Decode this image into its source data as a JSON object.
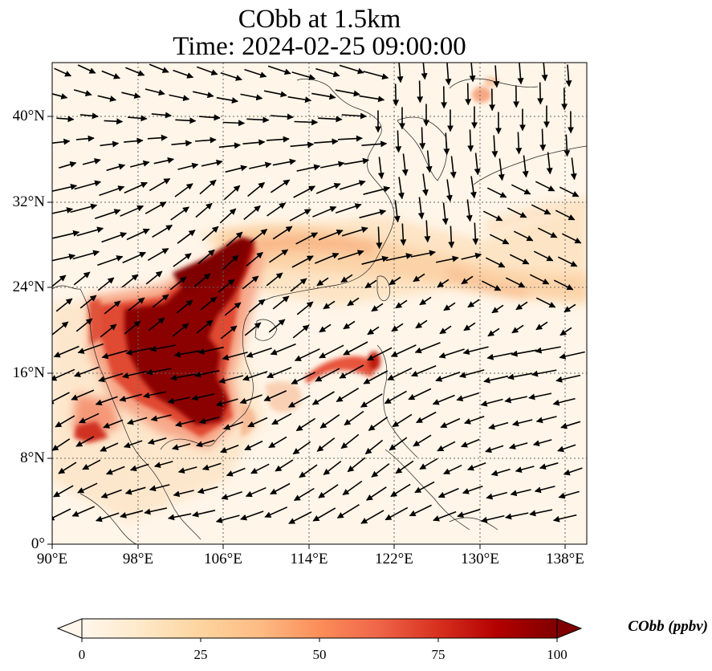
{
  "title_line1": "CObb at 1.5km",
  "title_line2": "Time: 2024-02-25 09:00:00",
  "variable": "CObb",
  "units": "ppbv",
  "colorbar": {
    "label": "CObb (ppbv)",
    "min": 0,
    "max": 100,
    "ticks": [
      "0",
      "25",
      "50",
      "75",
      "100"
    ],
    "colormap": "OrRd",
    "colors": [
      "#fff7ec",
      "#fee8c8",
      "#fdd49e",
      "#fdbb84",
      "#fc8d59",
      "#ef6548",
      "#d7301f",
      "#b30000",
      "#7f0000"
    ],
    "extend": "both"
  },
  "map": {
    "lon_range": [
      90,
      140
    ],
    "lat_range": [
      0,
      45
    ],
    "lon_ticks": [
      "90°E",
      "98°E",
      "106°E",
      "114°E",
      "122°E",
      "130°E",
      "138°E"
    ],
    "lat_ticks": [
      "0°",
      "8°N",
      "16°N",
      "24°N",
      "32°N",
      "40°N"
    ],
    "gridlines": "dotted",
    "vector_field": "wind vectors (black arrows)",
    "concentration_regions": [
      {
        "name": "Indochina / southern China core",
        "lon": [
          98,
          110
        ],
        "lat": [
          12,
          28
        ],
        "level": "100+"
      },
      {
        "name": "Northern Philippines plume",
        "lon": [
          117,
          121
        ],
        "lat": [
          16,
          18
        ],
        "level": "75-100"
      },
      {
        "name": "East China outflow band",
        "lon": [
          110,
          140
        ],
        "lat": [
          23,
          32
        ],
        "level": "15-35"
      },
      {
        "name": "Bay of Bengal streak",
        "lon": [
          92,
          97
        ],
        "lat": [
          9,
          11
        ],
        "level": "50-75"
      },
      {
        "name": "Northeast China",
        "lon": [
          128,
          131
        ],
        "lat": [
          42,
          44
        ],
        "level": "25-50"
      }
    ]
  }
}
